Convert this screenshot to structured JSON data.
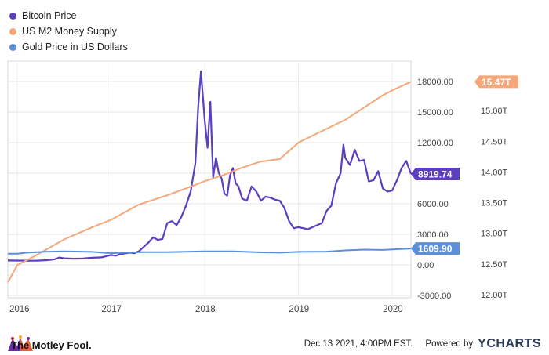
{
  "legend": [
    {
      "label": "Bitcoin Price",
      "color": "#5b3fbf"
    },
    {
      "label": "US M2 Money Supply",
      "color": "#f5a77a"
    },
    {
      "label": "Gold Price in US Dollars",
      "color": "#5b8fd9"
    }
  ],
  "footer": {
    "brand": "The Motley Fool.",
    "timestamp": "Dec 13 2021, 4:00PM EST.",
    "powered_by": "Powered by",
    "provider": "YCHARTS"
  },
  "chart_data": {
    "type": "line",
    "grid": true,
    "x_axis": {
      "ticks": [
        "2016",
        "2017",
        "2018",
        "2019",
        "2020"
      ],
      "range": [
        2015.9,
        2020.2
      ]
    },
    "y_axis_left": {
      "ticks": [
        "18000.00",
        "15000.00",
        "12000.00",
        "9000.00",
        "6000.00",
        "3000.00",
        "0.00",
        "-3000.00"
      ],
      "range": [
        -3000,
        20000
      ]
    },
    "y_axis_right": {
      "ticks": [
        "15.50T",
        "15.00T",
        "14.50T",
        "14.00T",
        "13.50T",
        "13.00T",
        "12.50T",
        "12.00T"
      ],
      "range": [
        12.0,
        15.5
      ],
      "unit": "T"
    },
    "series": [
      {
        "name": "Bitcoin Price",
        "color": "#5b3fbf",
        "axis": "left",
        "end_label": "8919.74",
        "points": [
          [
            2015.9,
            430
          ],
          [
            2016.0,
            420
          ],
          [
            2016.1,
            410
          ],
          [
            2016.2,
            415
          ],
          [
            2016.3,
            450
          ],
          [
            2016.4,
            550
          ],
          [
            2016.45,
            720
          ],
          [
            2016.5,
            650
          ],
          [
            2016.6,
            610
          ],
          [
            2016.7,
            620
          ],
          [
            2016.8,
            700
          ],
          [
            2016.9,
            740
          ],
          [
            2017.0,
            970
          ],
          [
            2017.05,
            900
          ],
          [
            2017.1,
            1050
          ],
          [
            2017.2,
            1200
          ],
          [
            2017.25,
            1150
          ],
          [
            2017.3,
            1350
          ],
          [
            2017.4,
            2200
          ],
          [
            2017.45,
            2700
          ],
          [
            2017.5,
            2450
          ],
          [
            2017.55,
            2550
          ],
          [
            2017.6,
            4100
          ],
          [
            2017.65,
            4300
          ],
          [
            2017.7,
            3900
          ],
          [
            2017.75,
            4700
          ],
          [
            2017.8,
            5800
          ],
          [
            2017.85,
            7200
          ],
          [
            2017.9,
            10000
          ],
          [
            2017.93,
            15500
          ],
          [
            2017.96,
            19000
          ],
          [
            2018.0,
            14200
          ],
          [
            2018.03,
            11500
          ],
          [
            2018.06,
            16000
          ],
          [
            2018.09,
            8600
          ],
          [
            2018.12,
            10500
          ],
          [
            2018.15,
            9000
          ],
          [
            2018.18,
            8500
          ],
          [
            2018.21,
            7000
          ],
          [
            2018.24,
            6800
          ],
          [
            2018.27,
            8800
          ],
          [
            2018.3,
            9500
          ],
          [
            2018.33,
            8000
          ],
          [
            2018.36,
            7700
          ],
          [
            2018.4,
            6500
          ],
          [
            2018.45,
            6300
          ],
          [
            2018.5,
            7700
          ],
          [
            2018.55,
            7200
          ],
          [
            2018.6,
            6300
          ],
          [
            2018.65,
            6700
          ],
          [
            2018.7,
            6600
          ],
          [
            2018.75,
            6400
          ],
          [
            2018.8,
            6300
          ],
          [
            2018.85,
            5600
          ],
          [
            2018.9,
            4300
          ],
          [
            2018.95,
            3600
          ],
          [
            2019.0,
            3700
          ],
          [
            2019.1,
            3500
          ],
          [
            2019.2,
            3900
          ],
          [
            2019.25,
            4100
          ],
          [
            2019.3,
            5300
          ],
          [
            2019.35,
            5800
          ],
          [
            2019.4,
            8000
          ],
          [
            2019.45,
            9000
          ],
          [
            2019.48,
            11800
          ],
          [
            2019.5,
            10500
          ],
          [
            2019.55,
            9800
          ],
          [
            2019.6,
            11300
          ],
          [
            2019.65,
            10200
          ],
          [
            2019.7,
            10300
          ],
          [
            2019.75,
            8200
          ],
          [
            2019.8,
            8300
          ],
          [
            2019.85,
            9200
          ],
          [
            2019.9,
            7500
          ],
          [
            2019.95,
            7200
          ],
          [
            2020.0,
            7300
          ],
          [
            2020.05,
            8300
          ],
          [
            2020.1,
            9500
          ],
          [
            2020.15,
            10200
          ],
          [
            2020.2,
            8919.74
          ]
        ]
      },
      {
        "name": "US M2 Money Supply",
        "color": "#f5a77a",
        "axis": "right",
        "end_label": "15.47T",
        "points": [
          [
            2015.9,
            12.2
          ],
          [
            2016.0,
            12.48
          ],
          [
            2016.2,
            12.64
          ],
          [
            2016.5,
            12.9
          ],
          [
            2016.8,
            13.1
          ],
          [
            2017.0,
            13.22
          ],
          [
            2017.3,
            13.47
          ],
          [
            2017.6,
            13.62
          ],
          [
            2017.9,
            13.79
          ],
          [
            2018.0,
            13.85
          ],
          [
            2018.2,
            13.95
          ],
          [
            2018.4,
            14.07
          ],
          [
            2018.6,
            14.17
          ],
          [
            2018.8,
            14.21
          ],
          [
            2019.0,
            14.48
          ],
          [
            2019.2,
            14.63
          ],
          [
            2019.5,
            14.85
          ],
          [
            2019.7,
            15.05
          ],
          [
            2019.9,
            15.25
          ],
          [
            2020.0,
            15.33
          ],
          [
            2020.2,
            15.47
          ]
        ]
      },
      {
        "name": "Gold Price in US Dollars",
        "color": "#5b8fd9",
        "axis": "left",
        "end_label": "1609.90",
        "points": [
          [
            2015.9,
            1090
          ],
          [
            2016.0,
            1100
          ],
          [
            2016.1,
            1200
          ],
          [
            2016.3,
            1290
          ],
          [
            2016.5,
            1330
          ],
          [
            2016.8,
            1280
          ],
          [
            2017.0,
            1150
          ],
          [
            2017.3,
            1250
          ],
          [
            2017.6,
            1250
          ],
          [
            2017.8,
            1290
          ],
          [
            2018.0,
            1320
          ],
          [
            2018.3,
            1330
          ],
          [
            2018.6,
            1230
          ],
          [
            2018.8,
            1200
          ],
          [
            2019.0,
            1280
          ],
          [
            2019.3,
            1300
          ],
          [
            2019.5,
            1420
          ],
          [
            2019.7,
            1500
          ],
          [
            2019.9,
            1470
          ],
          [
            2020.0,
            1520
          ],
          [
            2020.2,
            1609.9
          ]
        ]
      }
    ]
  }
}
